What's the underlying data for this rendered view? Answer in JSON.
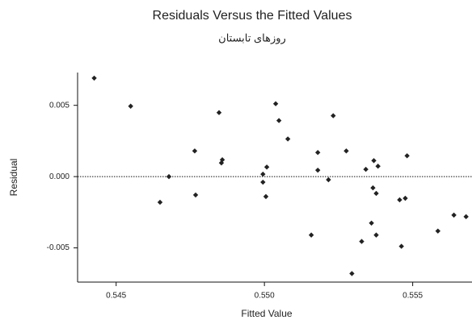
{
  "chart_data": {
    "type": "scatter",
    "title": "Residuals Versus the Fitted Values",
    "subtitle": "روزهای تابستان",
    "x_label": "Fitted Value",
    "y_label": "Residual",
    "xlim": [
      0.5437,
      0.557
    ],
    "ylim": [
      -0.0074,
      0.0073
    ],
    "xticks": [
      0.545,
      {
        "value": 0.55,
        "label": "0.550"
      },
      0.555
    ],
    "yticks": [
      -0.005,
      {
        "value": 0,
        "label": "0.000"
      },
      0.005
    ],
    "reference_line": 0,
    "color": "#222222",
    "x": [
      0.54426,
      0.54549,
      0.54678,
      0.54648,
      0.54765,
      0.54768,
      0.54847,
      0.54855,
      0.54858,
      0.54995,
      0.54995,
      0.55008,
      0.55005,
      0.55038,
      0.55049,
      0.55079,
      0.5518,
      0.5518,
      0.55158,
      0.55216,
      0.55232,
      0.55276,
      0.55295,
      0.55328,
      0.55342,
      0.55366,
      0.55369,
      0.55377,
      0.55383,
      0.55361,
      0.55377,
      0.55456,
      0.55475,
      0.55481,
      0.55462,
      0.55585,
      0.55639,
      0.5568
    ],
    "values": [
      0.00691,
      0.00494,
      0.0,
      -0.0018,
      0.0018,
      -0.00129,
      0.00449,
      0.00096,
      0.00118,
      0.00017,
      -0.00039,
      0.00067,
      -0.0014,
      0.00511,
      0.00393,
      0.00264,
      0.00169,
      0.00045,
      -0.0041,
      -0.00022,
      0.00427,
      0.0018,
      -0.0068,
      -0.00455,
      0.00051,
      -0.00079,
      0.00112,
      -0.00118,
      0.00073,
      -0.00326,
      -0.0041,
      -0.00163,
      -0.00152,
      0.00146,
      -0.00489,
      -0.00382,
      -0.0027,
      -0.00281
    ]
  }
}
